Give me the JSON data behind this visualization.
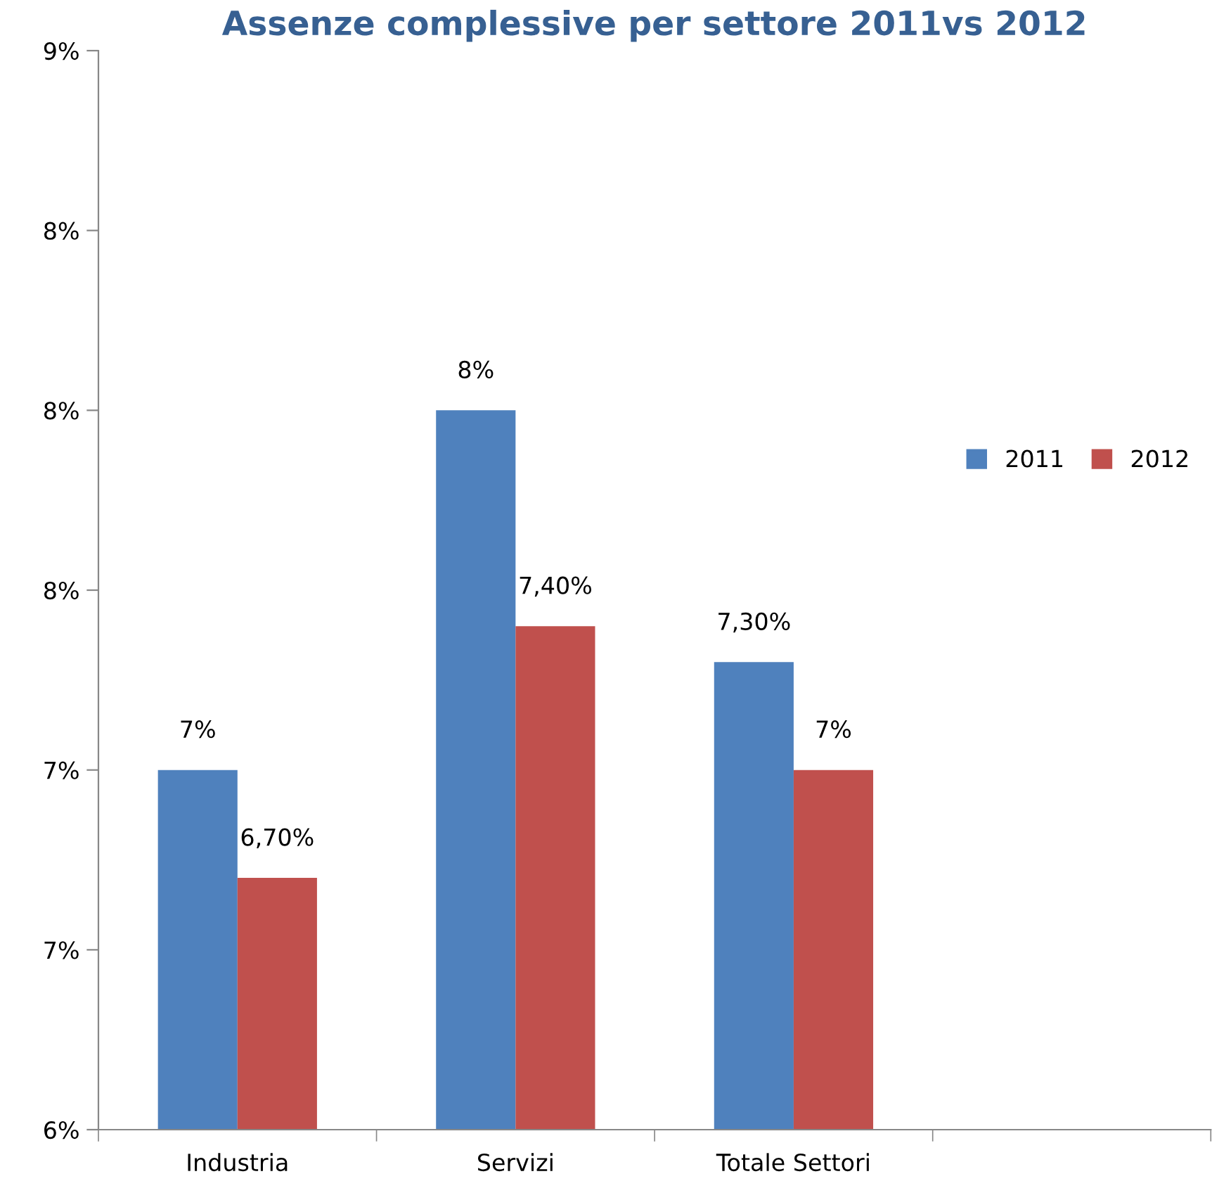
{
  "chart_data": {
    "type": "bar",
    "title": "Assenze complessive per settore 2011vs 2012",
    "categories": [
      "Industria",
      "Servizi",
      "Totale Settori",
      null
    ],
    "series": [
      {
        "name": "2011",
        "color": "#4f81bd",
        "values": [
          7.0,
          8.0,
          7.3,
          null
        ],
        "value_labels": [
          "7%",
          "8%",
          "7,30%",
          null
        ]
      },
      {
        "name": "2012",
        "color": "#c0504d",
        "values": [
          6.7,
          7.4,
          7.0,
          null
        ],
        "value_labels": [
          "6,70%",
          "7,40%",
          "7%",
          null
        ]
      }
    ],
    "ylim": [
      6,
      9
    ],
    "yticks": [
      {
        "value": 6,
        "label": "6%"
      },
      {
        "value": 6.5,
        "label": "7%"
      },
      {
        "value": 7,
        "label": "7%"
      },
      {
        "value": 7.5,
        "label": "8%"
      },
      {
        "value": 8,
        "label": "8%"
      },
      {
        "value": 8.5,
        "label": "8%"
      },
      {
        "value": 9,
        "label": "9%"
      }
    ],
    "grid": false,
    "legend": "right"
  }
}
